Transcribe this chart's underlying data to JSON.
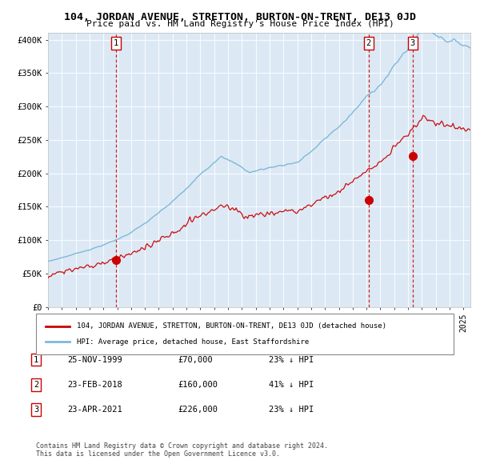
{
  "title": "104, JORDAN AVENUE, STRETTON, BURTON-ON-TRENT, DE13 0JD",
  "subtitle": "Price paid vs. HM Land Registry's House Price Index (HPI)",
  "legend_line1": "104, JORDAN AVENUE, STRETTON, BURTON-ON-TRENT, DE13 0JD (detached house)",
  "legend_line2": "HPI: Average price, detached house, East Staffordshire",
  "footer1": "Contains HM Land Registry data © Crown copyright and database right 2024.",
  "footer2": "This data is licensed under the Open Government Licence v3.0.",
  "sales": [
    {
      "num": 1,
      "date": "25-NOV-1999",
      "price": 70000,
      "pct": "23%",
      "dir": "↓"
    },
    {
      "num": 2,
      "date": "23-FEB-2018",
      "price": 160000,
      "pct": "41%",
      "dir": "↓"
    },
    {
      "num": 3,
      "date": "23-APR-2021",
      "price": 226000,
      "pct": "23%",
      "dir": "↓"
    }
  ],
  "sale_dates_decimal": [
    1999.9,
    2018.15,
    2021.32
  ],
  "sale_prices": [
    70000,
    160000,
    226000
  ],
  "hpi_color": "#7fb8d8",
  "price_color": "#cc0000",
  "dashed_color": "#cc0000",
  "plot_bg_color": "#dce9f5",
  "grid_color": "#ffffff",
  "ylim": [
    0,
    410000
  ],
  "yticks": [
    0,
    50000,
    100000,
    150000,
    200000,
    250000,
    300000,
    350000,
    400000
  ],
  "ytick_labels": [
    "£0",
    "£50K",
    "£100K",
    "£150K",
    "£200K",
    "£250K",
    "£300K",
    "£350K",
    "£400K"
  ],
  "xlim_start": 1995.0,
  "xlim_end": 2025.5
}
